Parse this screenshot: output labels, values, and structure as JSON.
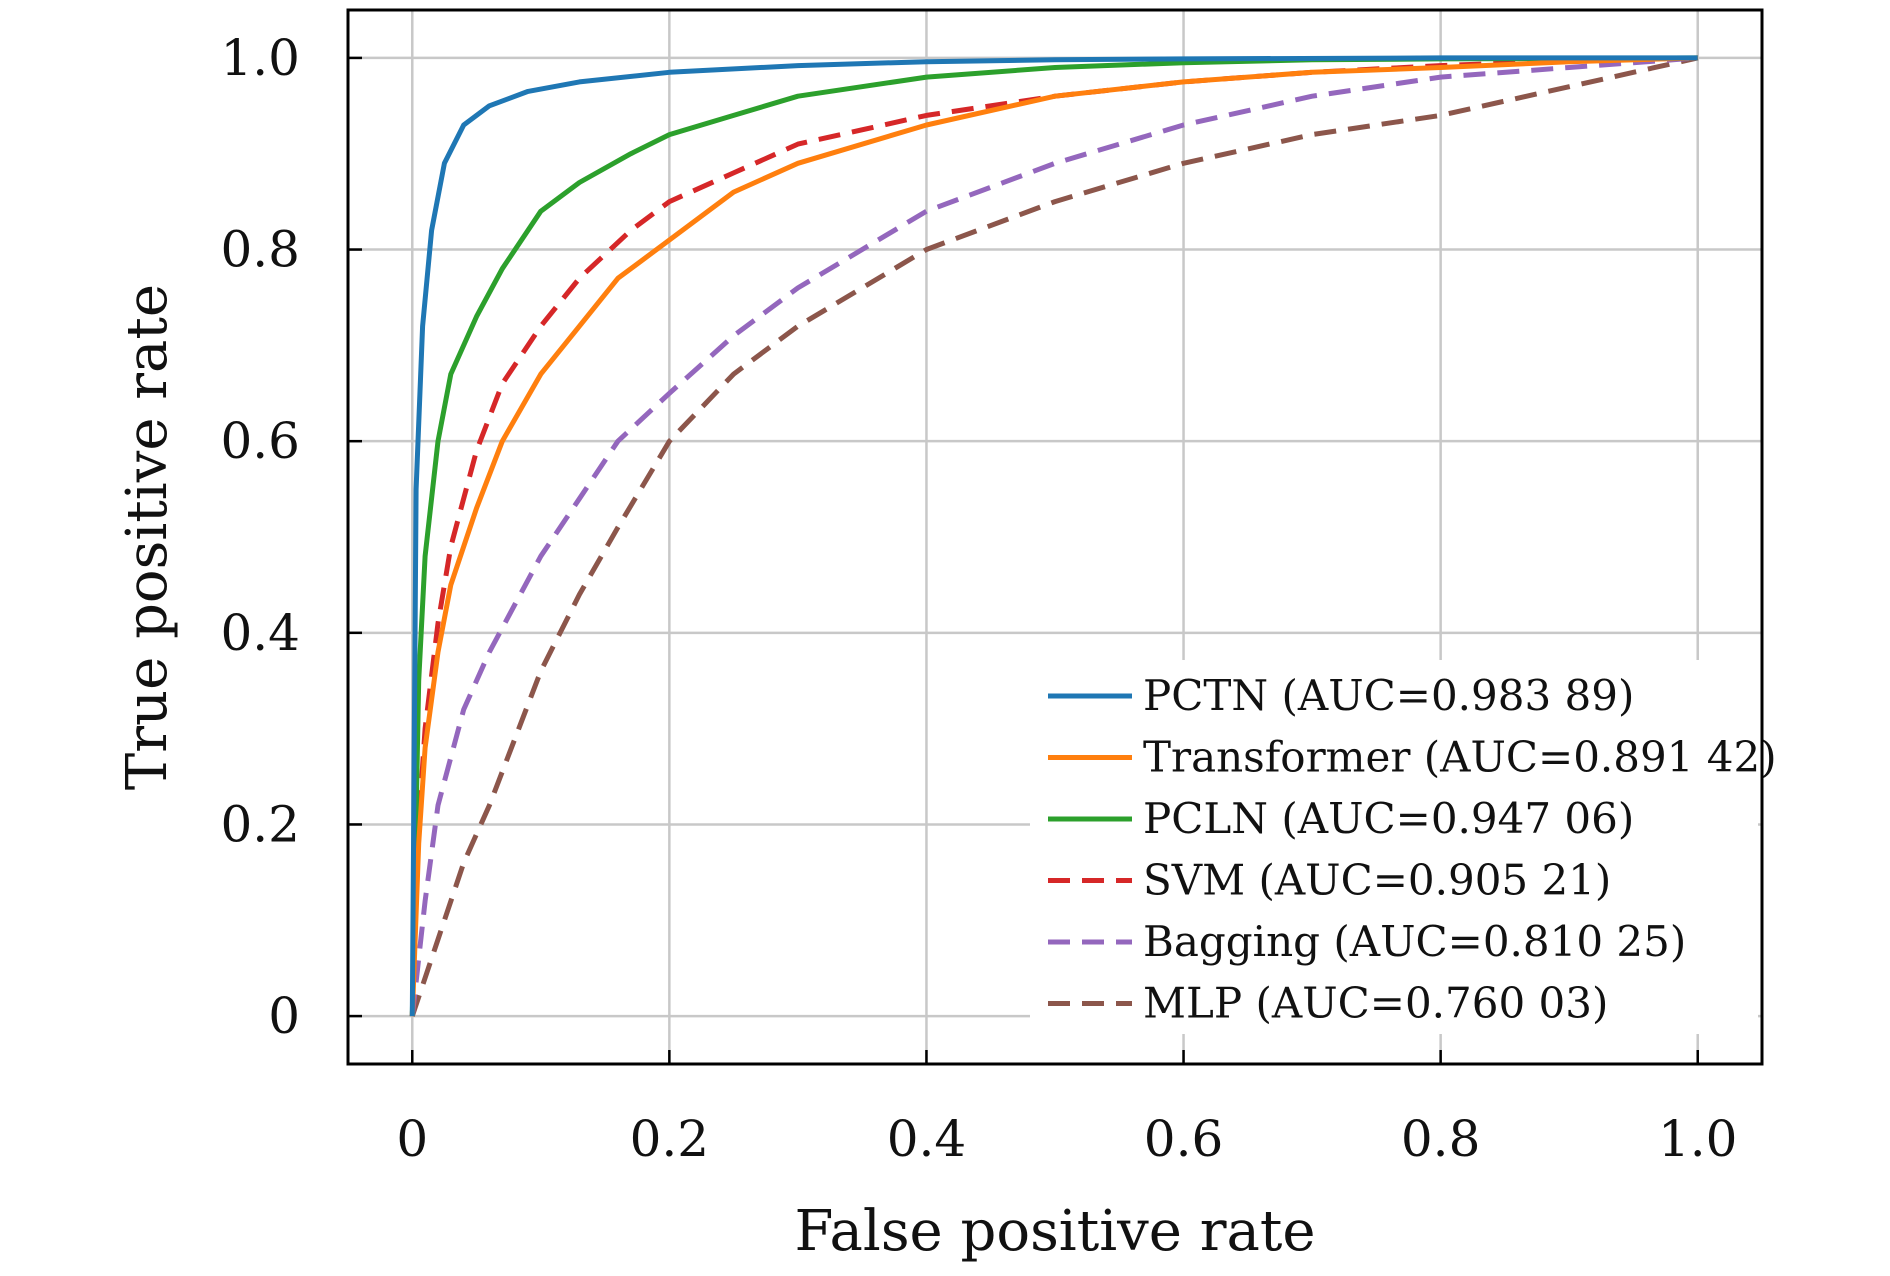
{
  "chart_data": {
    "type": "line",
    "xlabel": "False positive rate",
    "ylabel": "True positive rate",
    "xlim": [
      -0.05,
      1.05
    ],
    "ylim": [
      -0.05,
      1.05
    ],
    "xticks": [
      0,
      0.2,
      0.4,
      0.6,
      0.8,
      1.0
    ],
    "xtick_labels": [
      "0",
      "0.2",
      "0.4",
      "0.6",
      "0.8",
      "1.0"
    ],
    "yticks": [
      0,
      0.2,
      0.4,
      0.6,
      0.8,
      1.0
    ],
    "ytick_labels": [
      "0",
      "0.2",
      "0.4",
      "0.6",
      "0.8",
      "1.0"
    ],
    "grid": true,
    "legend_position": "bottom-right",
    "series": [
      {
        "name": "PCTN (AUC=0.983 89)",
        "color": "#1f77b4",
        "dashed": false,
        "x": [
          0,
          0.003,
          0.008,
          0.015,
          0.025,
          0.04,
          0.06,
          0.09,
          0.13,
          0.2,
          0.3,
          0.4,
          0.5,
          0.6,
          0.8,
          1.0
        ],
        "y": [
          0,
          0.55,
          0.72,
          0.82,
          0.89,
          0.93,
          0.95,
          0.965,
          0.975,
          0.985,
          0.992,
          0.996,
          0.998,
          0.999,
          1.0,
          1.0
        ]
      },
      {
        "name": "Transformer (AUC=0.891 42)",
        "color": "#ff7f0e",
        "dashed": false,
        "x": [
          0,
          0.005,
          0.01,
          0.02,
          0.03,
          0.05,
          0.07,
          0.1,
          0.13,
          0.16,
          0.2,
          0.25,
          0.3,
          0.4,
          0.5,
          0.6,
          0.7,
          0.8,
          0.9,
          1.0
        ],
        "y": [
          0,
          0.18,
          0.28,
          0.38,
          0.45,
          0.53,
          0.6,
          0.67,
          0.72,
          0.77,
          0.81,
          0.86,
          0.89,
          0.93,
          0.96,
          0.975,
          0.985,
          0.99,
          0.996,
          1.0
        ]
      },
      {
        "name": "PCLN (AUC=0.947 06)",
        "color": "#2ca02c",
        "dashed": false,
        "x": [
          0,
          0.005,
          0.01,
          0.02,
          0.03,
          0.05,
          0.07,
          0.1,
          0.13,
          0.17,
          0.2,
          0.25,
          0.3,
          0.4,
          0.5,
          0.6,
          0.7,
          0.8,
          1.0
        ],
        "y": [
          0,
          0.35,
          0.48,
          0.6,
          0.67,
          0.73,
          0.78,
          0.84,
          0.87,
          0.9,
          0.92,
          0.94,
          0.96,
          0.98,
          0.99,
          0.995,
          0.998,
          0.999,
          1.0
        ]
      },
      {
        "name": "SVM (AUC=0.905 21)",
        "color": "#d62728",
        "dashed": true,
        "x": [
          0,
          0.005,
          0.01,
          0.02,
          0.03,
          0.05,
          0.07,
          0.1,
          0.13,
          0.17,
          0.2,
          0.25,
          0.3,
          0.4,
          0.5,
          0.6,
          0.7,
          0.8,
          0.9,
          1.0
        ],
        "y": [
          0,
          0.2,
          0.3,
          0.41,
          0.49,
          0.59,
          0.66,
          0.72,
          0.77,
          0.82,
          0.85,
          0.88,
          0.91,
          0.94,
          0.96,
          0.975,
          0.985,
          0.992,
          0.997,
          1.0
        ]
      },
      {
        "name": "Bagging (AUC=0.810 25)",
        "color": "#9467bd",
        "dashed": true,
        "x": [
          0,
          0.01,
          0.02,
          0.04,
          0.06,
          0.08,
          0.1,
          0.13,
          0.16,
          0.2,
          0.25,
          0.3,
          0.35,
          0.4,
          0.5,
          0.6,
          0.7,
          0.8,
          0.9,
          1.0
        ],
        "y": [
          0,
          0.12,
          0.22,
          0.32,
          0.38,
          0.43,
          0.48,
          0.54,
          0.6,
          0.65,
          0.71,
          0.76,
          0.8,
          0.84,
          0.89,
          0.93,
          0.96,
          0.98,
          0.99,
          1.0
        ]
      },
      {
        "name": "MLP (AUC=0.760 03)",
        "color": "#8c564b",
        "dashed": true,
        "x": [
          0,
          0.02,
          0.04,
          0.06,
          0.08,
          0.1,
          0.13,
          0.16,
          0.2,
          0.25,
          0.3,
          0.35,
          0.4,
          0.5,
          0.6,
          0.7,
          0.8,
          0.9,
          1.0
        ],
        "y": [
          0,
          0.08,
          0.16,
          0.22,
          0.29,
          0.36,
          0.44,
          0.51,
          0.6,
          0.67,
          0.72,
          0.76,
          0.8,
          0.85,
          0.89,
          0.92,
          0.94,
          0.97,
          1.0
        ]
      }
    ]
  }
}
